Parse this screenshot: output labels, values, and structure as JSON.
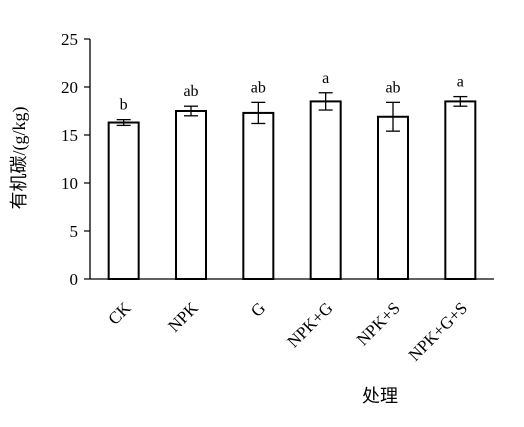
{
  "chart_data": {
    "type": "bar",
    "title": "",
    "xlabel": "处理",
    "ylabel": "有机碳/(g/kg)",
    "categories": [
      "CK",
      "NPK",
      "G",
      "NPK+G",
      "NPK+S",
      "NPK+G+S"
    ],
    "values": [
      16.3,
      17.5,
      17.3,
      18.5,
      16.9,
      18.5
    ],
    "error": [
      0.3,
      0.5,
      1.1,
      0.9,
      1.5,
      0.5
    ],
    "significance": [
      "b",
      "ab",
      "ab",
      "a",
      "ab",
      "a"
    ],
    "yticks": [
      "0",
      "5",
      "10",
      "15",
      "20",
      "25"
    ],
    "ylim": [
      0,
      25
    ],
    "grid": false,
    "legend": "none",
    "bar_fill": "#ffffff",
    "bar_stroke": "#000000"
  }
}
